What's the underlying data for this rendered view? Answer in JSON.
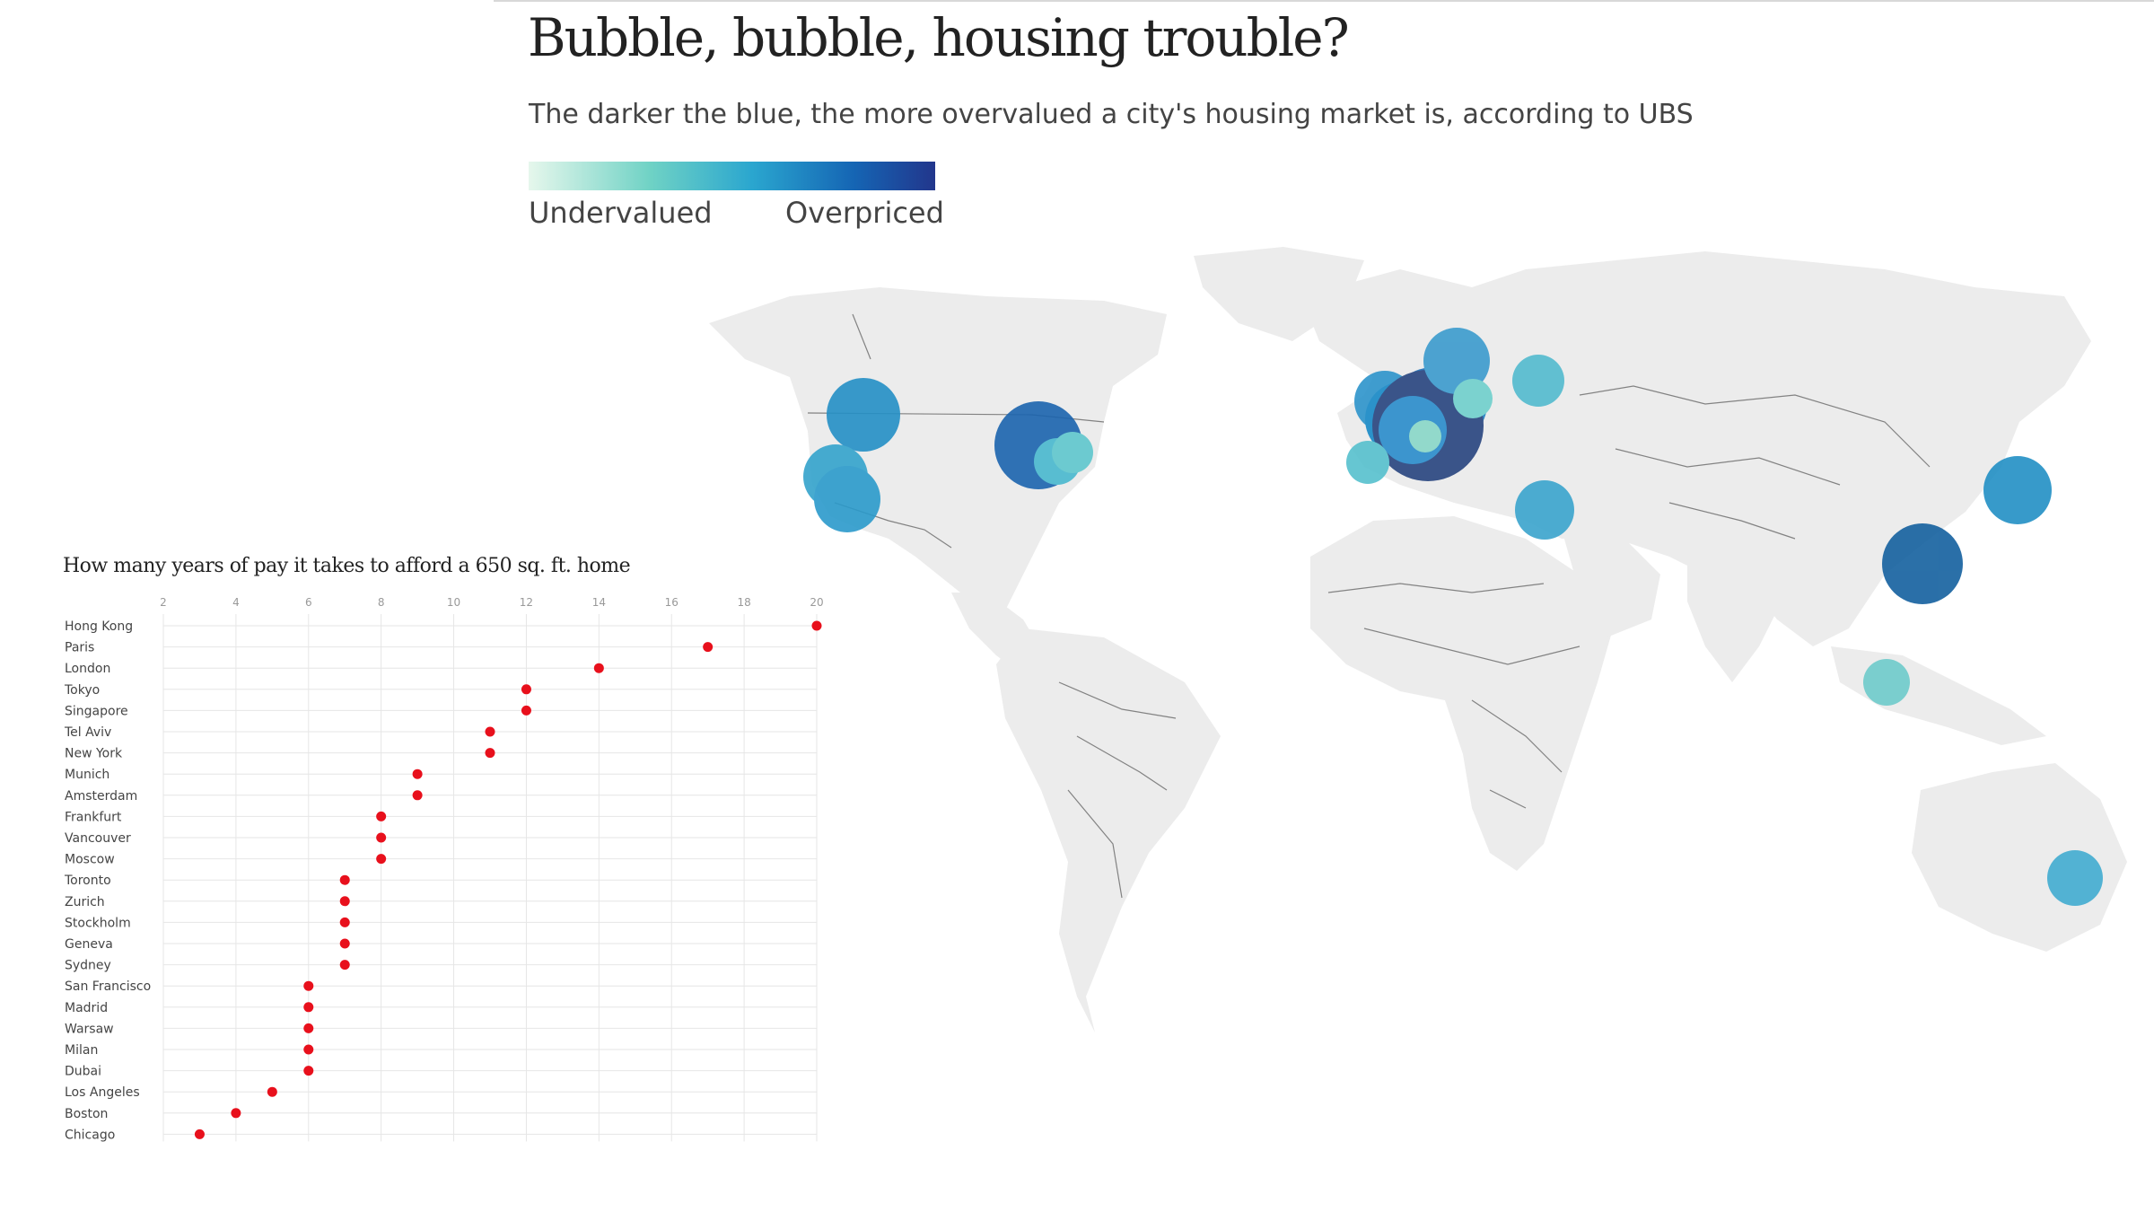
{
  "header": {
    "title": "Bubble, bubble, housing trouble?",
    "subtitle": "The darker the blue, the more overvalued a city's housing market is, according to UBS"
  },
  "legend": {
    "low_label": "Undervalued",
    "high_label": "Overpriced",
    "colors": [
      "#e6f7ec",
      "#6fd2c5",
      "#2aa6cf",
      "#1565b4",
      "#22368c"
    ]
  },
  "colors": {
    "land": "#ececec",
    "border": "#555555",
    "dot": "#e8101c",
    "grid": "#e6e6e6"
  },
  "map": {
    "type": "bubble-map",
    "bubbles": [
      {
        "region": "Vancouver",
        "color": "#2490c6"
      },
      {
        "region": "San Francisco",
        "color": "#34a3cc"
      },
      {
        "region": "Los Angeles",
        "color": "#2b9acb"
      },
      {
        "region": "New York",
        "color": "#1b64ae"
      },
      {
        "region": "Boston",
        "color": "#49b8cf"
      },
      {
        "region": "Chicago",
        "color": "#5fc7cd"
      },
      {
        "region": "London",
        "color": "#2d94cb"
      },
      {
        "region": "Paris",
        "color": "#1d6fb6"
      },
      {
        "region": "Amsterdam",
        "color": "#1789c7"
      },
      {
        "region": "Frankfurt",
        "color": "#1f80c2"
      },
      {
        "region": "Munich",
        "color": "#27447f"
      },
      {
        "region": "Zurich",
        "color": "#2a8ccb"
      },
      {
        "region": "Geneva",
        "color": "#89d8c8"
      },
      {
        "region": "Madrid",
        "color": "#56c0ce"
      },
      {
        "region": "Stockholm",
        "color": "#3b9bcd"
      },
      {
        "region": "Warsaw",
        "color": "#6fd0cc"
      },
      {
        "region": "Moscow",
        "color": "#52bbcf"
      },
      {
        "region": "Tel Aviv",
        "color": "#3aa4cd"
      },
      {
        "region": "Hong Kong",
        "color": "#14609f"
      },
      {
        "region": "Tokyo",
        "color": "#2290c5"
      },
      {
        "region": "Singapore",
        "color": "#6ecbcb"
      },
      {
        "region": "Sydney",
        "color": "#41acd0"
      }
    ]
  },
  "chart_data": {
    "type": "scatter",
    "title": "How many years of pay it takes to afford a 650 sq. ft. home",
    "xlabel": "",
    "ylabel": "",
    "xlim": [
      2,
      20
    ],
    "xticks": [
      2,
      4,
      6,
      8,
      10,
      12,
      14,
      16,
      18,
      20
    ],
    "grid": true,
    "categories": [
      "Hong Kong",
      "Paris",
      "London",
      "Tokyo",
      "Singapore",
      "Tel Aviv",
      "New York",
      "Munich",
      "Amsterdam",
      "Frankfurt",
      "Vancouver",
      "Moscow",
      "Toronto",
      "Zurich",
      "Stockholm",
      "Geneva",
      "Sydney",
      "San Francisco",
      "Madrid",
      "Warsaw",
      "Milan",
      "Dubai",
      "Los Angeles",
      "Boston",
      "Chicago"
    ],
    "values": [
      20,
      17,
      14,
      12,
      12,
      11,
      11,
      9,
      9,
      8,
      8,
      8,
      7,
      7,
      7,
      7,
      7,
      6,
      6,
      6,
      6,
      6,
      5,
      4,
      3
    ]
  }
}
